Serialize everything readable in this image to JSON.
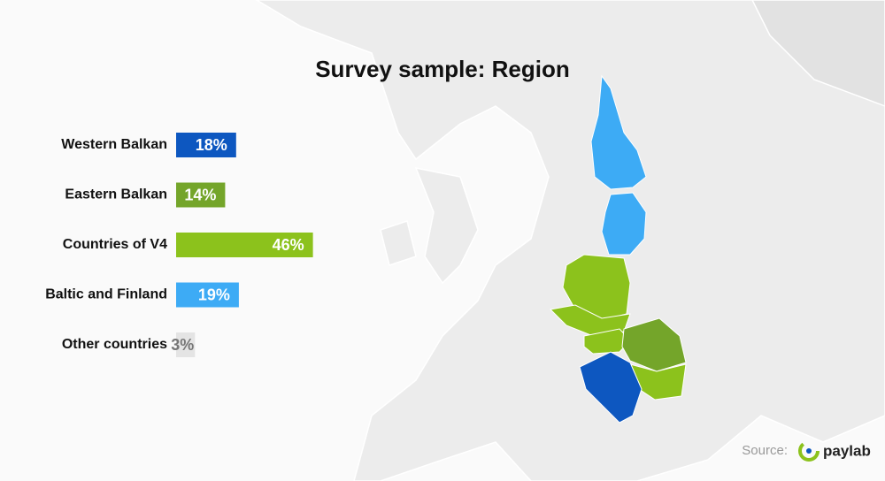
{
  "chart_data": {
    "type": "bar",
    "orientation": "horizontal",
    "title": "Survey sample: Region",
    "categories": [
      "Western Balkan",
      "Eastern Balkan",
      "Countries of V4",
      "Baltic and Finland",
      "Other countries"
    ],
    "values": [
      18,
      14,
      46,
      19,
      3
    ],
    "value_labels": [
      "18%",
      "14%",
      "46%",
      "19%",
      "3%"
    ],
    "colors": [
      "#0d57c0",
      "#74a52a",
      "#8cc21c",
      "#3dabf5",
      "#e4e4e4"
    ],
    "source_label": "Source:",
    "source_name": "paylab"
  }
}
